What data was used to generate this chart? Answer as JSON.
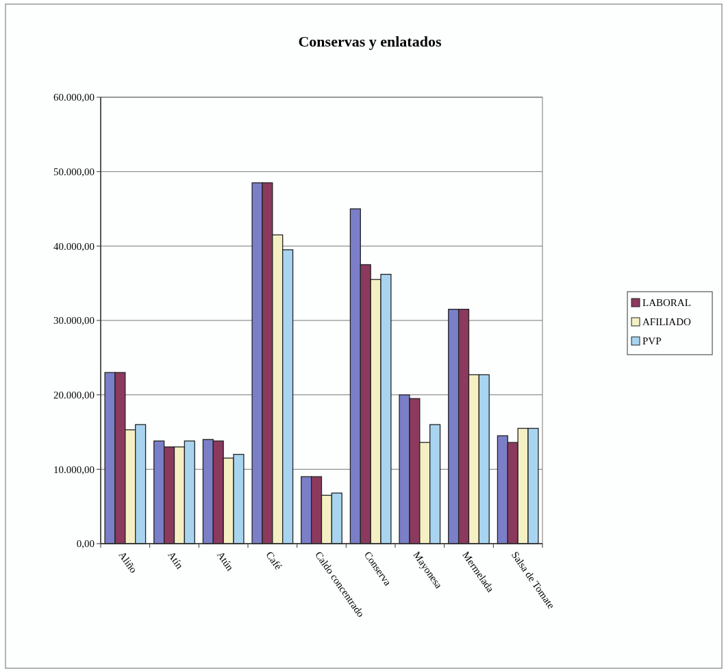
{
  "chart_data": {
    "type": "bar",
    "title": "Conservas y enlatados",
    "categories": [
      "Aliño",
      "Atín",
      "Atún",
      "Café",
      "Caldo concentrado",
      "Conserva",
      "Mayonesa",
      "Mermelada",
      "Salsa de Tomate"
    ],
    "series": [
      {
        "color": "#7b7fc8",
        "values": [
          23000,
          13800,
          14000,
          48500,
          9000,
          45000,
          20000,
          31500,
          14500
        ]
      },
      {
        "name": "LABORAL",
        "color": "#8b3a5e",
        "values": [
          23000,
          13000,
          13800,
          48500,
          9000,
          37500,
          19500,
          31500,
          13600
        ]
      },
      {
        "name": "AFILIADO",
        "color": "#f4f0c4",
        "values": [
          15300,
          13000,
          11500,
          41500,
          6500,
          35500,
          13600,
          22700,
          15500
        ]
      },
      {
        "name": "PVP",
        "color": "#a8d4f0",
        "values": [
          16000,
          13800,
          12000,
          39500,
          6800,
          36200,
          16000,
          22700,
          15500
        ]
      }
    ],
    "ylim": [
      0,
      60000
    ],
    "yticks": [
      {
        "value": 0,
        "label": "0,00"
      },
      {
        "value": 10000,
        "label": "10.000,00"
      },
      {
        "value": 20000,
        "label": "20.000,00"
      },
      {
        "value": 30000,
        "label": "30.000,00"
      },
      {
        "value": 40000,
        "label": "40.000,00"
      },
      {
        "value": 50000,
        "label": "50.000,00"
      },
      {
        "value": 60000,
        "label": "60.000,00"
      }
    ],
    "grid": "y",
    "legend": "right"
  }
}
